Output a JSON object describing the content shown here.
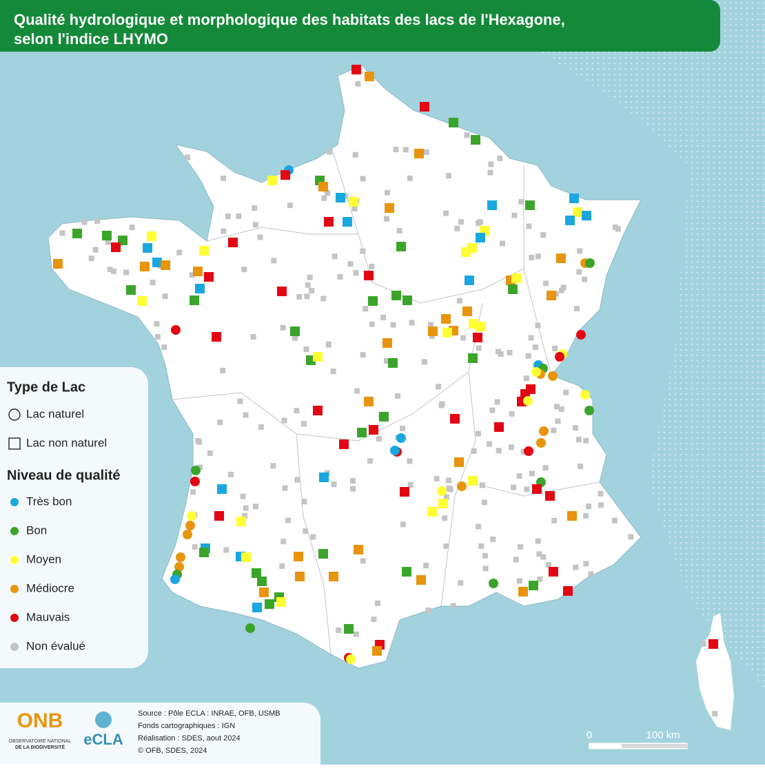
{
  "header": {
    "title_lines": [
      "Qualité hydrologique et morphologique des habitats des lacs de l'Hexagone,",
      "selon l'indice LHYMO"
    ]
  },
  "legend": {
    "type_title": "Type de Lac",
    "types": [
      "Lac naturel",
      "Lac non naturel"
    ],
    "level_title": "Niveau de qualité",
    "levels": [
      {
        "label": "Très bon",
        "color": "#1aa7e0"
      },
      {
        "label": "Bon",
        "color": "#3aa52a"
      },
      {
        "label": "Moyen",
        "color": "#ffff33"
      },
      {
        "label": "Médiocre",
        "color": "#e8940f"
      },
      {
        "label": "Mauvais",
        "color": "#e30613"
      },
      {
        "label": "Non évalué",
        "color": "#c4c4c4"
      }
    ]
  },
  "footer": {
    "sources": [
      "Source : Pôle ECLA : INRAE, OFB, USMB",
      "Fonds cartographiques : IGN",
      "Réalisation : SDES, aout 2024",
      "© OFB, SDES, 2024"
    ],
    "onb_logo": "ONB",
    "onb_caption": [
      "OBSERVATOIRE NATIONAL",
      "DE LA BIODIVERSITÉ"
    ],
    "ecla_logo": "eCLA"
  },
  "scale": {
    "start": "0",
    "end": "100 km"
  }
}
